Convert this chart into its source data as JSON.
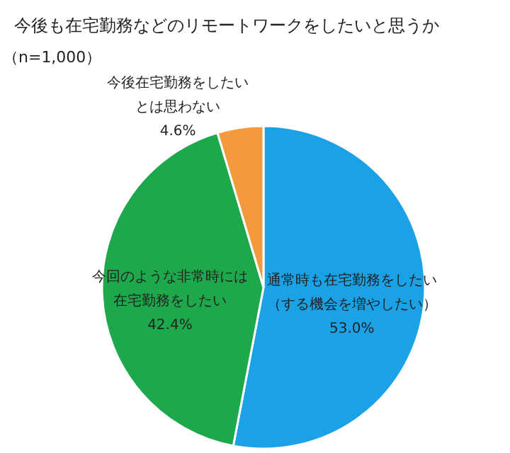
{
  "chart_data": {
    "type": "pie",
    "title": "今後も在宅勤務などのリモートワークをしたいと思うか",
    "subtitle": "（n=1,000）",
    "categories": [
      "通常時も在宅勤務をしたい（する機会を増やしたい）",
      "今回のような非常時には在宅勤務をしたい",
      "今後在宅勤務をしたいとは思わない"
    ],
    "values": [
      53.0,
      42.4,
      4.6
    ],
    "colors": [
      "#1ba1e6",
      "#1ea84c",
      "#f59a3c"
    ],
    "value_labels": [
      "53.0%",
      "42.4%",
      "4.6%"
    ]
  }
}
